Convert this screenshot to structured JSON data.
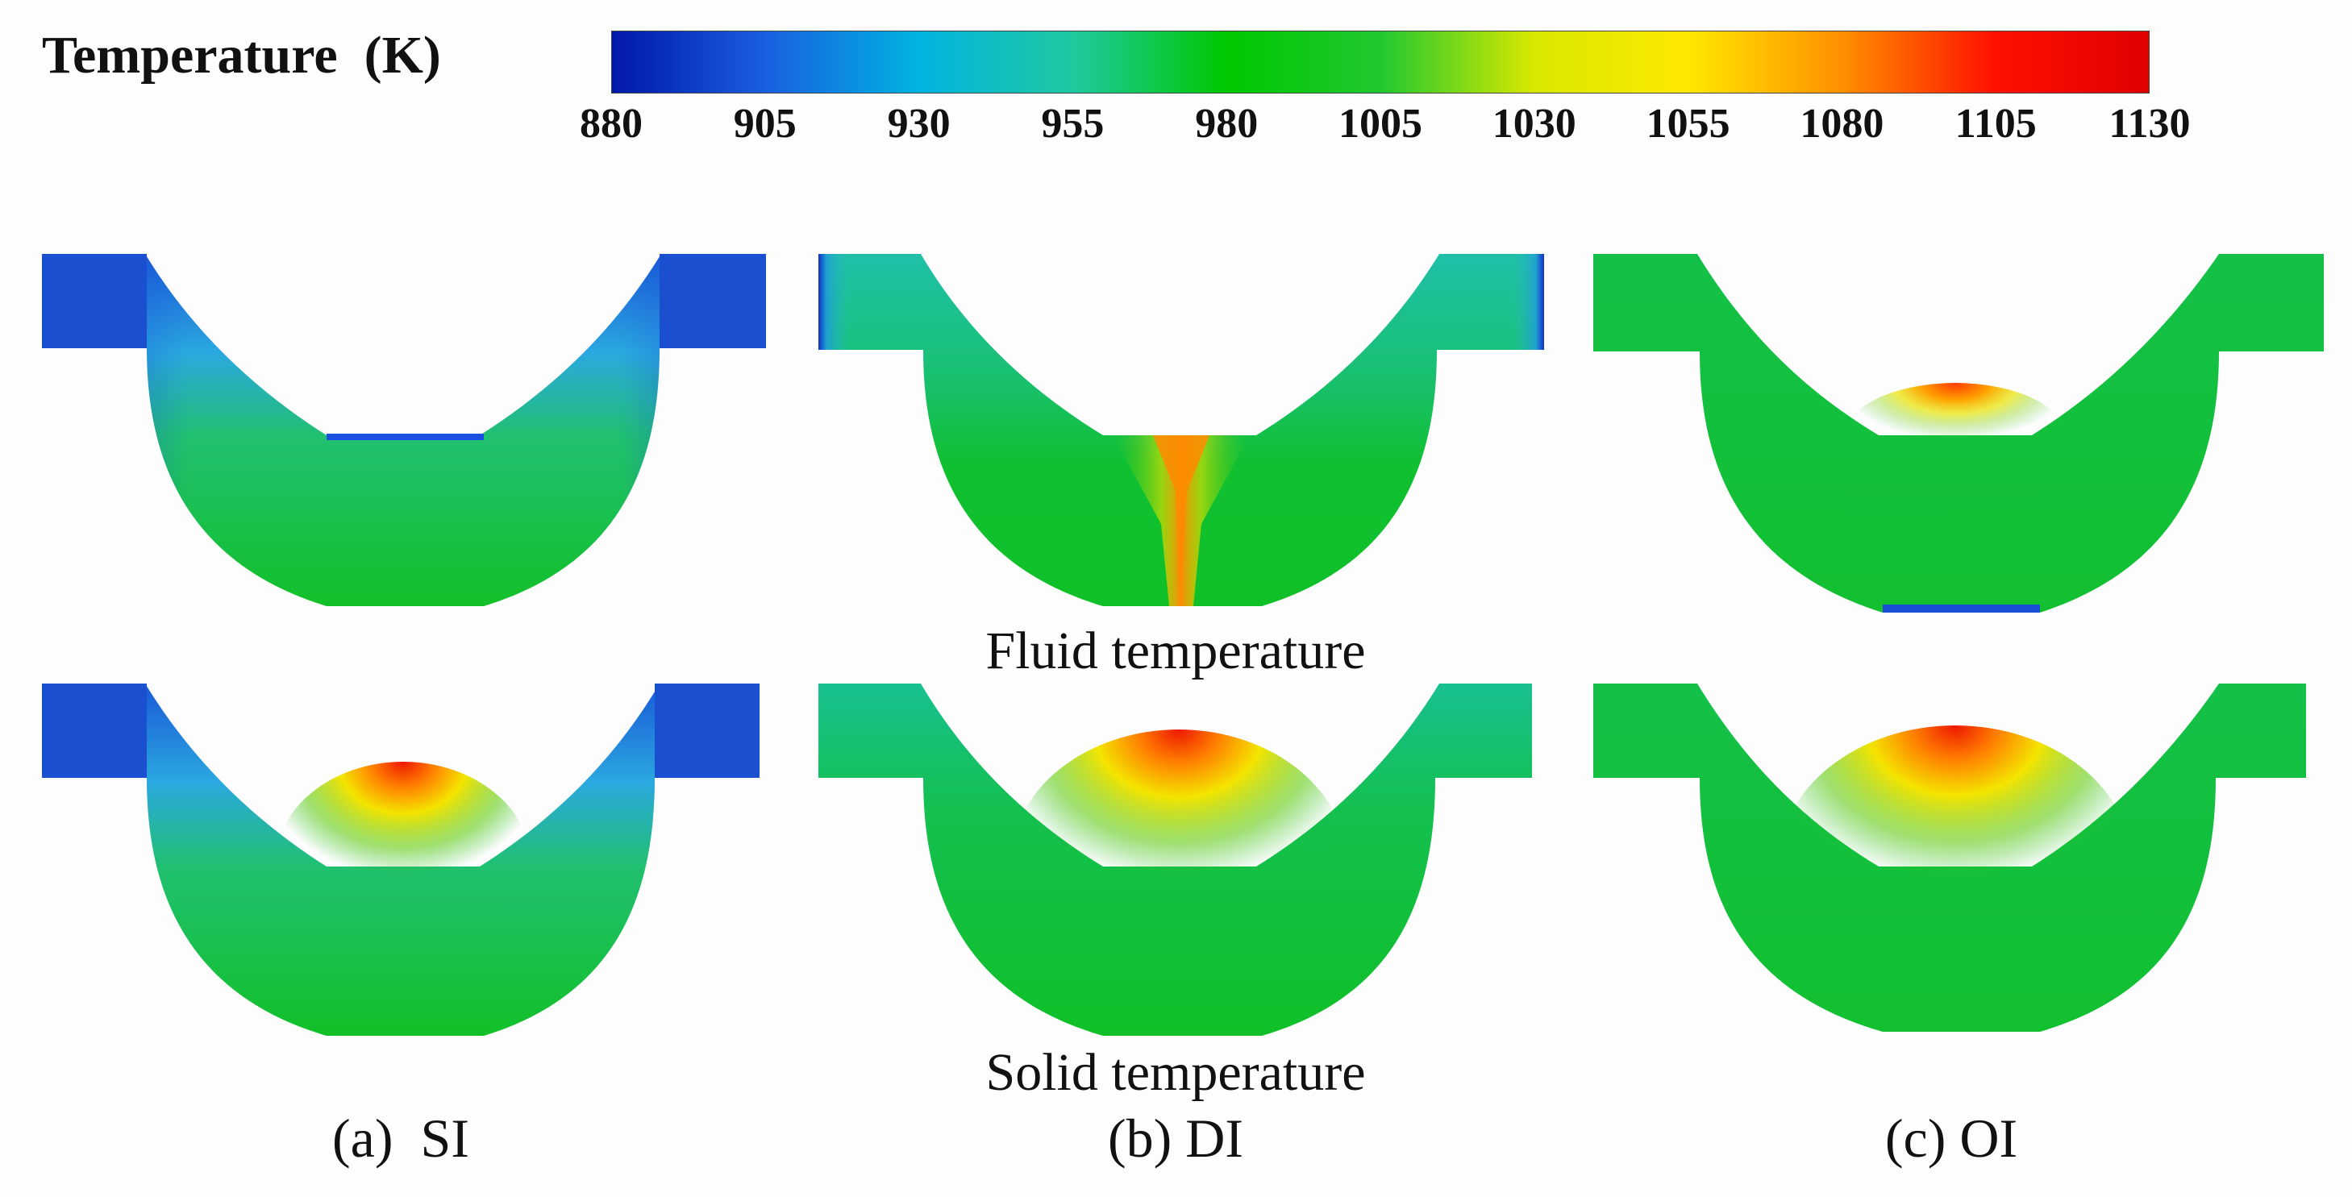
{
  "legend": {
    "title": "Temperature  (K)",
    "ticks": [
      "880",
      "905",
      "930",
      "955",
      "980",
      "1005",
      "1030",
      "1055",
      "1080",
      "1105",
      "1130"
    ],
    "range": [
      880,
      1130
    ],
    "colors": [
      "#0018a8",
      "#1a5fe0",
      "#00b4e0",
      "#20c8a0",
      "#00c800",
      "#20c830",
      "#d8e800",
      "#ffe800",
      "#ff9000",
      "#ff1000",
      "#e00000"
    ]
  },
  "rows": {
    "fluid_label": "Fluid temperature",
    "solid_label": "Solid temperature"
  },
  "columns": [
    {
      "label": "(a)  SI"
    },
    {
      "label": "(b) DI"
    },
    {
      "label": "(c) OI"
    }
  ],
  "palette": {
    "cold_blue": "#1550d0",
    "light_blue": "#28a8e0",
    "teal": "#1cc0a0",
    "green": "#10c030",
    "yellow": "#ffe800",
    "orange": "#ff8c00",
    "red": "#ee1000"
  }
}
